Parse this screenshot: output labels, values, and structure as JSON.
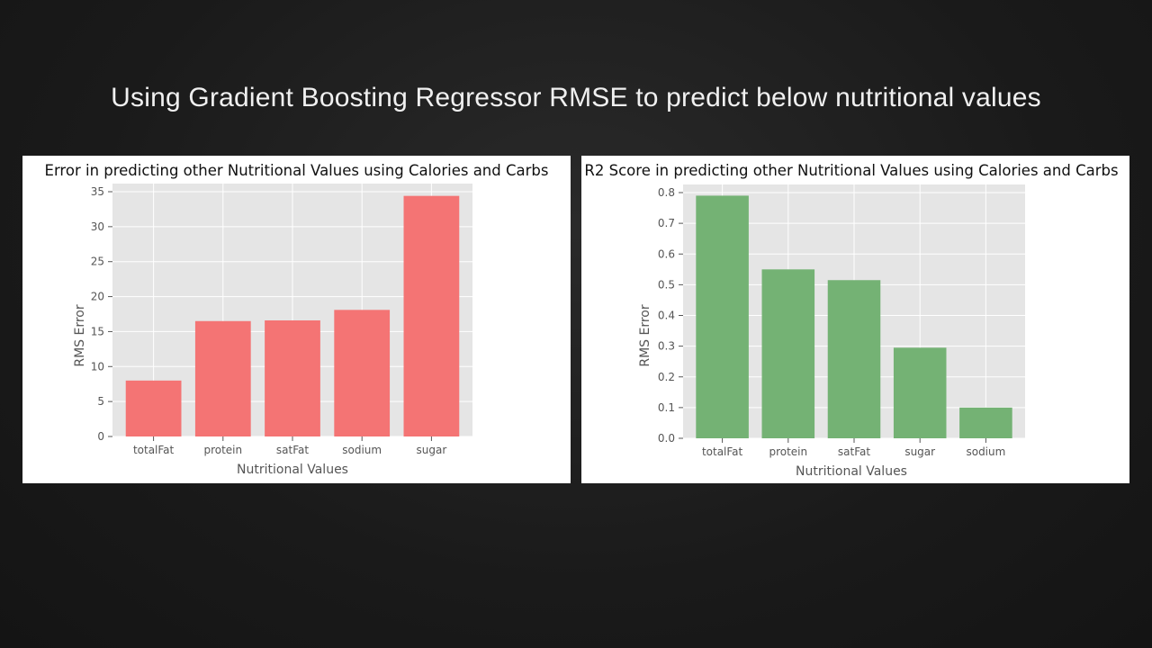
{
  "slide": {
    "title": "Using Gradient Boosting Regressor RMSE to predict below nutritional values"
  },
  "colors": {
    "rmse_bar": "#f47474",
    "r2_bar": "#74b274",
    "plot_bg": "#e5e5e5",
    "grid": "#ffffff"
  },
  "chart_data": [
    {
      "type": "bar",
      "title": "Error in predicting other Nutritional Values using Calories and Carbs",
      "xlabel": "Nutritional Values",
      "ylabel": "RMS Error",
      "categories": [
        "totalFat",
        "protein",
        "satFat",
        "sodium",
        "sugar"
      ],
      "values": [
        8.0,
        16.5,
        16.6,
        18.1,
        34.4
      ],
      "ylim": [
        0,
        35
      ],
      "yticks": [
        0,
        5,
        10,
        15,
        20,
        25,
        30,
        35
      ],
      "grid": true
    },
    {
      "type": "bar",
      "title": "R2 Score in predicting other Nutritional Values using Calories and Carbs",
      "xlabel": "Nutritional Values",
      "ylabel": "RMS Error",
      "categories": [
        "totalFat",
        "protein",
        "satFat",
        "sugar",
        "sodium"
      ],
      "values": [
        0.79,
        0.55,
        0.515,
        0.295,
        0.1
      ],
      "ylim": [
        0,
        0.8
      ],
      "yticks": [
        0.0,
        0.1,
        0.2,
        0.3,
        0.4,
        0.5,
        0.6,
        0.7,
        0.8
      ],
      "grid": true
    }
  ]
}
